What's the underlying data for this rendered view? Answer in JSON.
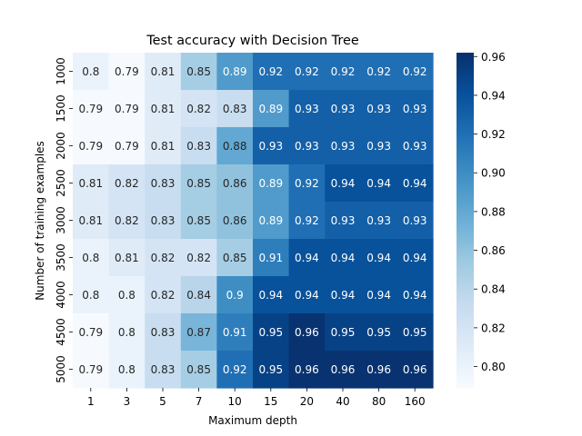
{
  "chart_data": {
    "type": "heatmap",
    "title": "Test accuracy with Decision Tree",
    "xlabel": "Maximum depth",
    "ylabel": "Number of training examples",
    "x_categories": [
      "1",
      "3",
      "5",
      "7",
      "10",
      "15",
      "20",
      "40",
      "80",
      "160"
    ],
    "y_categories": [
      "1000",
      "1500",
      "2000",
      "2500",
      "3000",
      "3500",
      "4000",
      "4500",
      "5000"
    ],
    "values": [
      [
        0.8,
        0.79,
        0.81,
        0.85,
        0.89,
        0.92,
        0.92,
        0.92,
        0.92,
        0.92
      ],
      [
        0.79,
        0.79,
        0.81,
        0.82,
        0.83,
        0.89,
        0.93,
        0.93,
        0.93,
        0.93
      ],
      [
        0.79,
        0.79,
        0.81,
        0.83,
        0.88,
        0.93,
        0.93,
        0.93,
        0.93,
        0.93
      ],
      [
        0.81,
        0.82,
        0.83,
        0.85,
        0.86,
        0.89,
        0.92,
        0.94,
        0.94,
        0.94
      ],
      [
        0.81,
        0.82,
        0.83,
        0.85,
        0.86,
        0.89,
        0.92,
        0.93,
        0.93,
        0.93
      ],
      [
        0.8,
        0.81,
        0.82,
        0.82,
        0.85,
        0.91,
        0.94,
        0.94,
        0.94,
        0.94
      ],
      [
        0.8,
        0.8,
        0.82,
        0.84,
        0.9,
        0.94,
        0.94,
        0.94,
        0.94,
        0.94
      ],
      [
        0.79,
        0.8,
        0.83,
        0.87,
        0.91,
        0.95,
        0.96,
        0.95,
        0.95,
        0.95
      ],
      [
        0.79,
        0.8,
        0.83,
        0.85,
        0.92,
        0.95,
        0.96,
        0.96,
        0.96,
        0.96
      ]
    ],
    "annotations": [
      [
        "0.8",
        "0.79",
        "0.81",
        "0.85",
        "0.89",
        "0.92",
        "0.92",
        "0.92",
        "0.92",
        "0.92"
      ],
      [
        "0.79",
        "0.79",
        "0.81",
        "0.82",
        "0.83",
        "0.89",
        "0.93",
        "0.93",
        "0.93",
        "0.93"
      ],
      [
        "0.79",
        "0.79",
        "0.81",
        "0.83",
        "0.88",
        "0.93",
        "0.93",
        "0.93",
        "0.93",
        "0.93"
      ],
      [
        "0.81",
        "0.82",
        "0.83",
        "0.85",
        "0.86",
        "0.89",
        "0.92",
        "0.94",
        "0.94",
        "0.94"
      ],
      [
        "0.81",
        "0.82",
        "0.83",
        "0.85",
        "0.86",
        "0.89",
        "0.92",
        "0.93",
        "0.93",
        "0.93"
      ],
      [
        "0.8",
        "0.81",
        "0.82",
        "0.82",
        "0.85",
        "0.91",
        "0.94",
        "0.94",
        "0.94",
        "0.94"
      ],
      [
        "0.8",
        "0.8",
        "0.82",
        "0.84",
        "0.9",
        "0.94",
        "0.94",
        "0.94",
        "0.94",
        "0.94"
      ],
      [
        "0.79",
        "0.8",
        "0.83",
        "0.87",
        "0.91",
        "0.95",
        "0.96",
        "0.95",
        "0.95",
        "0.95"
      ],
      [
        "0.79",
        "0.8",
        "0.83",
        "0.85",
        "0.92",
        "0.95",
        "0.96",
        "0.96",
        "0.96",
        "0.96"
      ]
    ],
    "colormap": "Blues",
    "color_range": [
      0.789,
      0.962
    ],
    "colorbar_ticks": [
      {
        "value": 0.8,
        "label": "0.80"
      },
      {
        "value": 0.82,
        "label": "0.82"
      },
      {
        "value": 0.84,
        "label": "0.84"
      },
      {
        "value": 0.86,
        "label": "0.86"
      },
      {
        "value": 0.88,
        "label": "0.88"
      },
      {
        "value": 0.9,
        "label": "0.90"
      },
      {
        "value": 0.92,
        "label": "0.92"
      },
      {
        "value": 0.94,
        "label": "0.94"
      },
      {
        "value": 0.96,
        "label": "0.96"
      }
    ],
    "grid": false,
    "legend": "colorbar-right"
  }
}
